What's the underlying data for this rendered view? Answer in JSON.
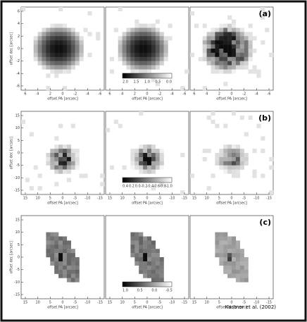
{
  "rows": [
    {
      "label": "(a)",
      "x_ticks": [
        "6",
        "4",
        "2",
        "0",
        "-2",
        "-4",
        "-6"
      ],
      "y_ticks": [
        "-6",
        "-4",
        "-2",
        "0",
        "2",
        "4",
        "6"
      ],
      "colorbar_ticks": [
        "2.0",
        "1.5",
        "1.0",
        "0.5",
        "0.0"
      ]
    },
    {
      "label": "(b)",
      "x_ticks": [
        "15",
        "10",
        "5",
        "0",
        "-5",
        "-10",
        "-15"
      ],
      "y_ticks": [
        "-15",
        "-10",
        "-5",
        "0",
        "5",
        "10",
        "15"
      ],
      "colorbar_ticks": [
        "0.4",
        "0.2",
        "0.0",
        "-0.2",
        "-0.4",
        "-0.6",
        "-0.8",
        "-1.0"
      ]
    },
    {
      "label": "(c)",
      "x_ticks": [
        "15",
        "10",
        "5",
        "0",
        "-5",
        "-10",
        "-15"
      ],
      "y_ticks": [
        "-15",
        "-10",
        "-5",
        "0",
        "5",
        "10",
        "15"
      ],
      "colorbar_ticks": [
        "1.0",
        "0.5",
        "0.0",
        "-0.5"
      ]
    }
  ],
  "x_axis_label": "offset PA [arcsec]",
  "y_axis_label": "offset dec [arcsec]",
  "credit": "Kastner et al. (2002)"
}
